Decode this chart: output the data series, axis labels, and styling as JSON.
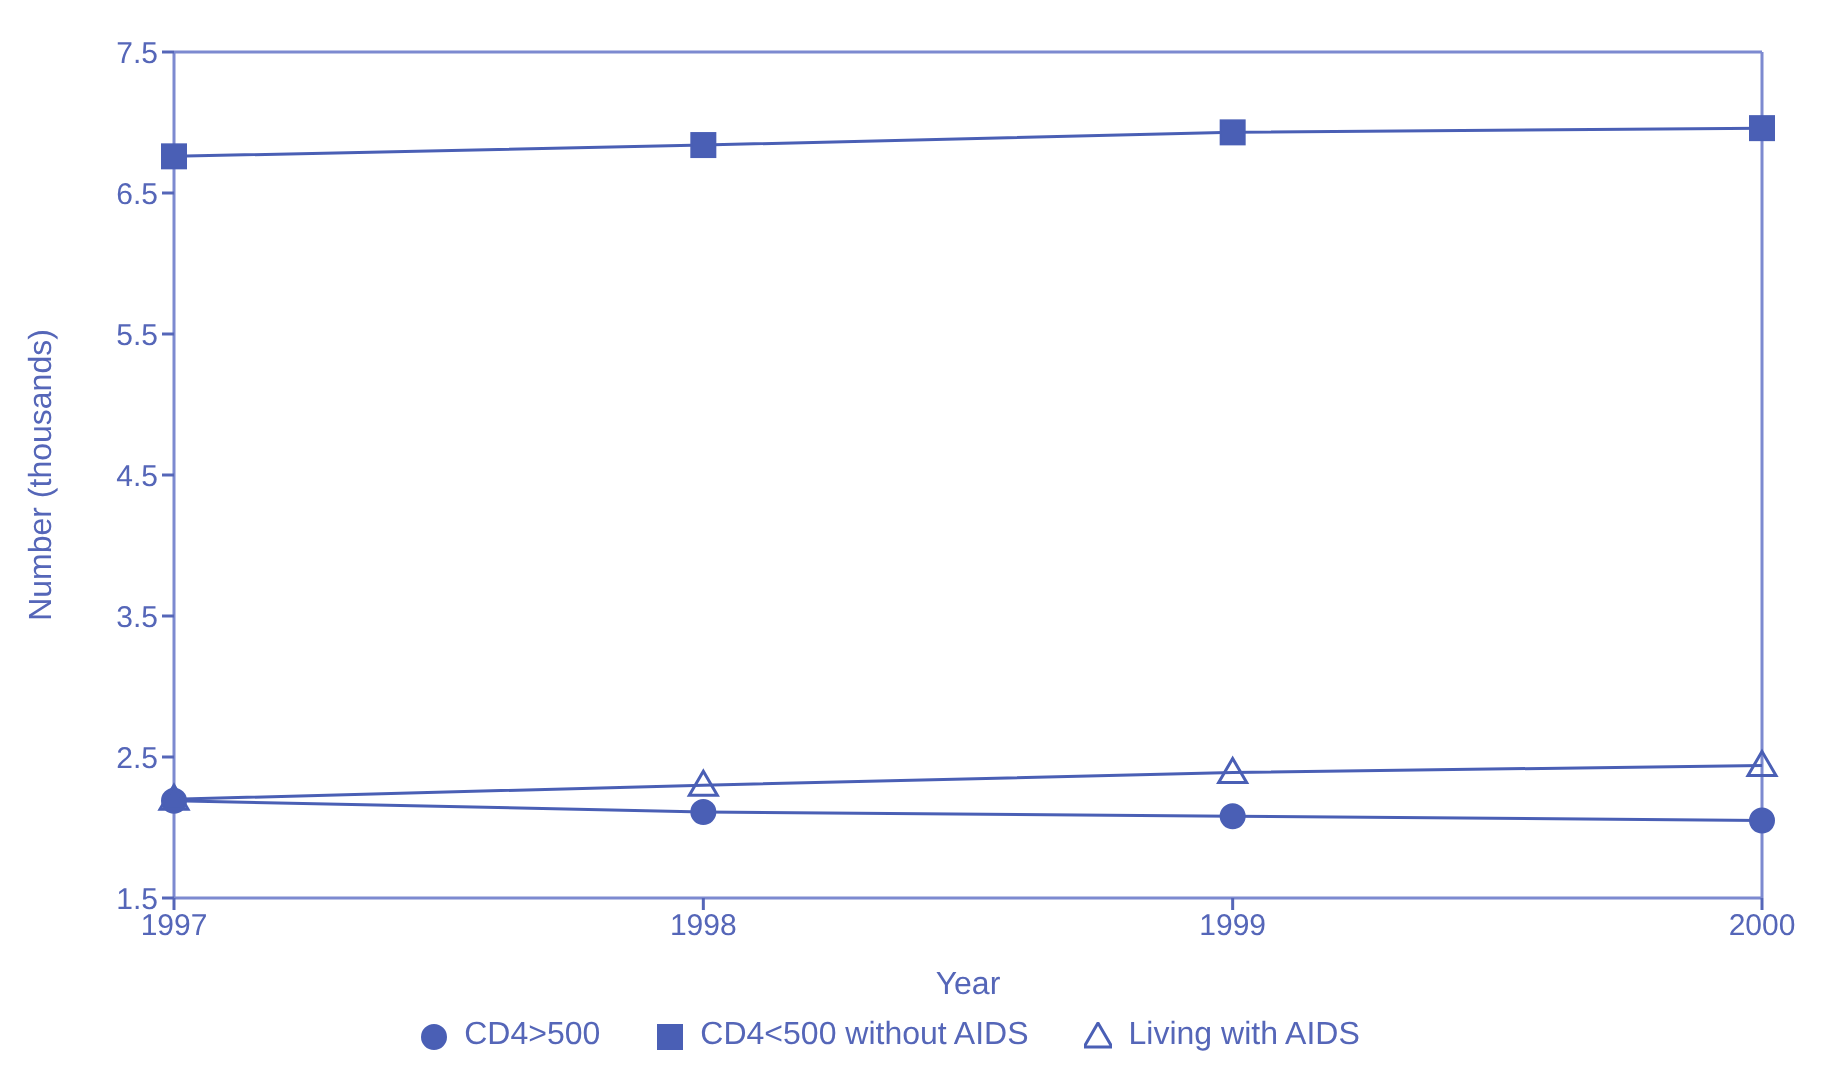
{
  "chart_data": {
    "type": "line",
    "xlabel": "Year",
    "ylabel": "Number (thousands)",
    "x": [
      1997,
      1998,
      1999,
      2000
    ],
    "xlim": [
      1997,
      2000
    ],
    "xticks": [
      1997,
      1998,
      1999,
      2000
    ],
    "ylim": [
      1.5,
      7.5
    ],
    "yticks": [
      1.5,
      2.5,
      3.5,
      4.5,
      5.5,
      6.5,
      7.5
    ],
    "grid": false,
    "legend": "bottom",
    "line_style": "solid",
    "series": [
      {
        "name": "CD4>500",
        "color": "#4a5fb5",
        "marker": "circle",
        "values": [
          2.19,
          2.11,
          2.08,
          2.05
        ]
      },
      {
        "name": "CD4<500 without AIDS",
        "color": "#4a5fb5",
        "marker": "square",
        "values": [
          6.76,
          6.84,
          6.93,
          6.96
        ]
      },
      {
        "name": "Living with AIDS",
        "color": "#4a5fb5",
        "marker": "triangle",
        "values": [
          2.2,
          2.3,
          2.39,
          2.44
        ]
      }
    ]
  }
}
